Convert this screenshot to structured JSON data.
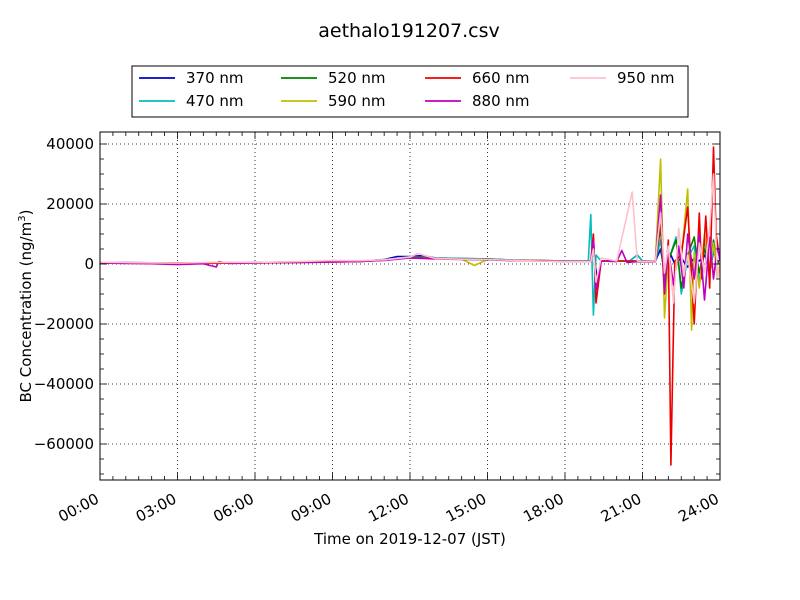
{
  "chart_data": {
    "type": "line",
    "title": "aethalo191207.csv",
    "xlabel": "Time on 2019-12-07 (JST)",
    "ylabel": "BC Concentration (ng/m",
    "ylabel_sup": "3",
    "ylabel_close": ")",
    "xlim": [
      0,
      24
    ],
    "ylim": [
      -72000,
      44000
    ],
    "x_ticks": [
      0,
      3,
      6,
      9,
      12,
      15,
      18,
      21,
      24
    ],
    "x_tick_labels": [
      "00:00",
      "03:00",
      "06:00",
      "09:00",
      "12:00",
      "15:00",
      "18:00",
      "21:00",
      "24:00"
    ],
    "y_ticks": [
      -60000,
      -40000,
      -20000,
      0,
      20000,
      40000
    ],
    "y_tick_labels": [
      "−60000",
      "−40000",
      "−20000",
      "0",
      "20000",
      "40000"
    ],
    "grid": true,
    "legend_position": "top-center",
    "series": [
      {
        "name": "370 nm",
        "color": "#0000cd",
        "x": [
          0,
          1,
          2,
          3,
          4,
          5,
          6,
          7,
          8,
          9,
          10,
          11,
          11.5,
          12,
          12.5,
          13,
          14,
          15,
          16,
          17,
          18,
          19.0,
          19.1,
          19.25,
          19.4,
          20.0,
          20.5,
          20.8,
          21.0,
          21.5,
          21.7,
          21.85,
          22.0,
          22.1,
          22.25,
          22.5,
          22.75,
          23.0,
          23.2,
          23.4,
          23.6,
          23.75,
          23.9,
          24.0
        ],
        "y": [
          500,
          500,
          400,
          300,
          400,
          500,
          500,
          600,
          700,
          800,
          900,
          1500,
          2500,
          2500,
          2800,
          2000,
          1800,
          1700,
          1300,
          1200,
          1000,
          1000,
          4000,
          -5000,
          1000,
          1000,
          1000,
          3000,
          1000,
          1000,
          5000,
          -3000,
          1000,
          3000,
          0,
          2000,
          -1000,
          2000,
          1000,
          3000,
          -2000,
          4000,
          1000,
          1000
        ]
      },
      {
        "name": "470 nm",
        "color": "#00bfbf",
        "x": [
          0,
          1,
          2,
          3,
          4,
          5,
          6,
          7,
          8,
          9,
          10,
          11,
          12,
          13,
          14,
          15,
          16,
          17,
          18,
          18.9,
          19.0,
          19.1,
          19.2,
          19.4,
          20.0,
          20.5,
          20.8,
          21.0,
          21.5,
          21.7,
          21.85,
          22.0,
          22.3,
          22.5,
          22.75,
          23.0,
          23.2,
          23.4,
          23.6,
          23.75,
          23.9,
          24.0
        ],
        "y": [
          500,
          400,
          300,
          200,
          300,
          400,
          500,
          600,
          700,
          800,
          900,
          1400,
          2400,
          2000,
          1800,
          1700,
          1300,
          1200,
          1000,
          1000,
          16500,
          -17000,
          3000,
          1000,
          1000,
          1000,
          3000,
          1000,
          1000,
          8000,
          -5000,
          1000,
          9000,
          -10000,
          2000,
          6000,
          -6000,
          8000,
          -3000,
          5000,
          0,
          1000
        ]
      },
      {
        "name": "520 nm",
        "color": "#008000",
        "x": [
          0,
          2,
          4,
          6,
          8,
          10,
          11,
          12,
          13,
          14,
          15,
          16,
          17,
          18,
          19.0,
          19.1,
          19.2,
          19.4,
          20.0,
          20.8,
          21.0,
          21.5,
          21.7,
          21.85,
          22.0,
          22.3,
          22.5,
          22.75,
          23.0,
          23.2,
          23.4,
          23.6,
          23.75,
          23.9,
          24.0
        ],
        "y": [
          400,
          300,
          300,
          400,
          600,
          800,
          1300,
          2200,
          1900,
          1700,
          1600,
          1200,
          1100,
          900,
          900,
          9000,
          -8000,
          1000,
          1000,
          1000,
          900,
          1000,
          12000,
          -8000,
          1000,
          8000,
          -8000,
          3000,
          9000,
          -3000,
          5000,
          -2000,
          8000,
          0,
          1000
        ]
      },
      {
        "name": "590 nm",
        "color": "#bfbf00",
        "x": [
          0,
          2,
          4,
          6,
          8,
          10,
          11,
          12,
          13,
          14,
          14.5,
          15,
          16,
          17,
          18,
          19.0,
          19.1,
          19.2,
          19.4,
          20.0,
          20.8,
          21.0,
          21.5,
          21.7,
          21.85,
          22.0,
          22.2,
          22.4,
          22.5,
          22.75,
          22.9,
          23.0,
          23.2,
          23.4,
          23.6,
          23.75,
          23.9,
          24.0
        ],
        "y": [
          400,
          300,
          300,
          400,
          600,
          800,
          1300,
          2100,
          1800,
          1600,
          -500,
          1500,
          1200,
          1100,
          900,
          900,
          7000,
          -7000,
          1000,
          1000,
          1000,
          900,
          1000,
          35000,
          -18000,
          2000,
          -6000,
          3000,
          2000,
          25000,
          -22000,
          4000,
          -8000,
          10000,
          -2000,
          7000,
          -5000,
          1000
        ]
      },
      {
        "name": "660 nm",
        "color": "#ee0000",
        "x": [
          0,
          2,
          4,
          6,
          8,
          10,
          11,
          12,
          13,
          14,
          15,
          16,
          17,
          18,
          19.0,
          19.1,
          19.2,
          19.4,
          20.0,
          20.8,
          21.0,
          21.5,
          21.7,
          21.85,
          22.0,
          22.1,
          22.25,
          22.5,
          22.75,
          23.0,
          23.2,
          23.3,
          23.45,
          23.6,
          23.75,
          23.85,
          24.0
        ],
        "y": [
          400,
          300,
          300,
          400,
          600,
          800,
          1300,
          2100,
          1800,
          1600,
          1500,
          1200,
          1100,
          900,
          900,
          10000,
          -13000,
          1000,
          1000,
          1000,
          900,
          1000,
          15000,
          -10000,
          8000,
          -67000,
          1000,
          3000,
          19000,
          -20000,
          17000,
          -5000,
          16000,
          -8000,
          39000,
          10000,
          1000
        ]
      },
      {
        "name": "880 nm",
        "color": "#bf00bf",
        "x": [
          0,
          1,
          2,
          3,
          4,
          4.5,
          4.6,
          5,
          6,
          7,
          8,
          9,
          10,
          11,
          12,
          13,
          14,
          15,
          16,
          17,
          18,
          19.0,
          19.1,
          19.2,
          19.4,
          20.0,
          20.2,
          20.4,
          20.8,
          21.0,
          21.5,
          21.7,
          21.85,
          22.0,
          22.2,
          22.4,
          22.6,
          22.75,
          23.0,
          23.2,
          23.4,
          23.6,
          23.75,
          23.9,
          24.0
        ],
        "y": [
          300,
          200,
          100,
          -200,
          100,
          -1000,
          800,
          200,
          300,
          500,
          500,
          700,
          800,
          1200,
          2000,
          1700,
          1500,
          1400,
          1100,
          1000,
          800,
          800,
          8000,
          -9000,
          1000,
          800,
          4500,
          500,
          800,
          700,
          800,
          23000,
          -9000,
          5000,
          -7000,
          6000,
          -8000,
          10000,
          -5000,
          10000,
          -12000,
          9000,
          -5000,
          6000,
          1000
        ]
      },
      {
        "name": "950 nm",
        "color": "#ffc0cb",
        "x": [
          0,
          1,
          2,
          3,
          4,
          5,
          6,
          7,
          8,
          9,
          10,
          11,
          12,
          12.3,
          13,
          14,
          15,
          16,
          17,
          18,
          19.0,
          19.1,
          19.2,
          19.4,
          20.0,
          20.6,
          20.8,
          21.0,
          21.5,
          21.7,
          21.85,
          22.0,
          22.2,
          22.4,
          22.6,
          22.75,
          23.0,
          23.2,
          23.4,
          23.6,
          23.75,
          23.9,
          24.0
        ],
        "y": [
          600,
          500,
          400,
          300,
          500,
          600,
          500,
          700,
          900,
          1200,
          1100,
          1400,
          2300,
          3500,
          1800,
          1600,
          1500,
          1200,
          1000,
          800,
          800,
          5000,
          -6000,
          2000,
          1000,
          24000,
          1000,
          800,
          1000,
          17000,
          -3000,
          6000,
          -13000,
          12000,
          -4000,
          3000,
          -13000,
          7000,
          -3000,
          12000,
          30000,
          -5000,
          1000
        ]
      }
    ]
  }
}
